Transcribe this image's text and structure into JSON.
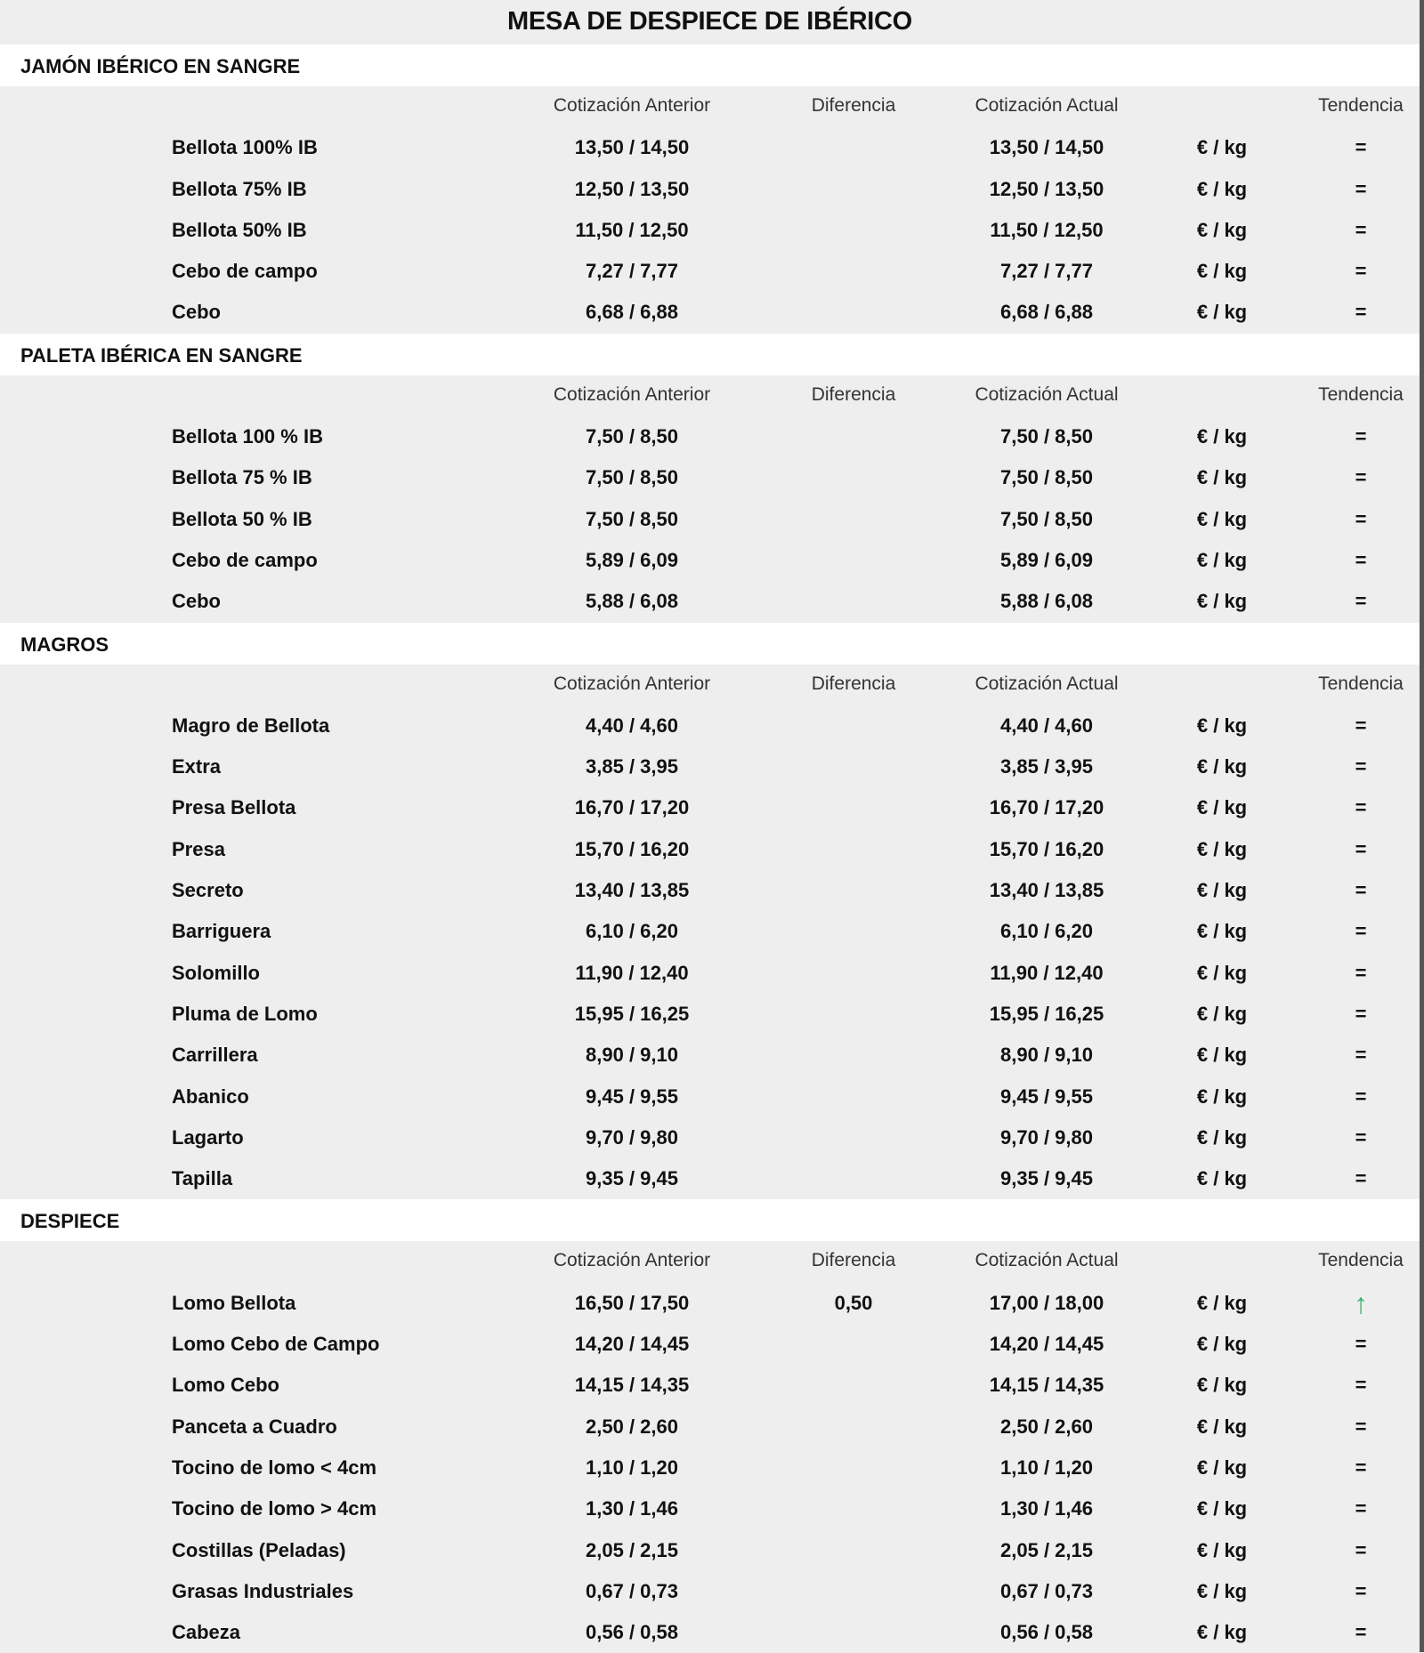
{
  "title": "MESA DE DESPIECE DE IBÉRICO",
  "columns": {
    "anterior": "Cotización Anterior",
    "diferencia": "Diferencia",
    "actual": "Cotización Actual",
    "tendencia": "Tendencia"
  },
  "colors": {
    "background": "#eeeeee",
    "section_header": "#ffffff",
    "trend_up": "#3cb371"
  },
  "sections": [
    {
      "title": "JAMÓN IBÉRICO EN SANGRE",
      "rows": [
        {
          "name": "Bellota 100% IB",
          "anterior": "13,50 / 14,50",
          "diferencia": "",
          "actual": "13,50 / 14,50",
          "unit": "€ / kg",
          "trend": "="
        },
        {
          "name": "Bellota 75% IB",
          "anterior": "12,50 / 13,50",
          "diferencia": "",
          "actual": "12,50 / 13,50",
          "unit": "€ / kg",
          "trend": "="
        },
        {
          "name": "Bellota 50% IB",
          "anterior": "11,50 / 12,50",
          "diferencia": "",
          "actual": "11,50 / 12,50",
          "unit": "€ / kg",
          "trend": "="
        },
        {
          "name": "Cebo de campo",
          "anterior": "7,27 / 7,77",
          "diferencia": "",
          "actual": "7,27 / 7,77",
          "unit": "€ / kg",
          "trend": "="
        },
        {
          "name": "Cebo",
          "anterior": "6,68 / 6,88",
          "diferencia": "",
          "actual": "6,68 / 6,88",
          "unit": "€ / kg",
          "trend": "="
        }
      ]
    },
    {
      "title": "PALETA IBÉRICA EN SANGRE",
      "rows": [
        {
          "name": "Bellota 100 % IB",
          "anterior": "7,50 / 8,50",
          "diferencia": "",
          "actual": "7,50 / 8,50",
          "unit": "€ / kg",
          "trend": "="
        },
        {
          "name": "Bellota 75 % IB",
          "anterior": "7,50 / 8,50",
          "diferencia": "",
          "actual": "7,50 / 8,50",
          "unit": "€ / kg",
          "trend": "="
        },
        {
          "name": "Bellota 50 % IB",
          "anterior": "7,50 / 8,50",
          "diferencia": "",
          "actual": "7,50 / 8,50",
          "unit": "€ / kg",
          "trend": "="
        },
        {
          "name": "Cebo de campo",
          "anterior": "5,89 / 6,09",
          "diferencia": "",
          "actual": "5,89 / 6,09",
          "unit": "€ / kg",
          "trend": "="
        },
        {
          "name": "Cebo",
          "anterior": "5,88 / 6,08",
          "diferencia": "",
          "actual": "5,88 / 6,08",
          "unit": "€ / kg",
          "trend": "="
        }
      ]
    },
    {
      "title": "MAGROS",
      "rows": [
        {
          "name": "Magro de Bellota",
          "anterior": "4,40 / 4,60",
          "diferencia": "",
          "actual": "4,40 / 4,60",
          "unit": "€ / kg",
          "trend": "="
        },
        {
          "name": "Extra",
          "anterior": "3,85 / 3,95",
          "diferencia": "",
          "actual": "3,85 / 3,95",
          "unit": "€ / kg",
          "trend": "="
        },
        {
          "name": "Presa Bellota",
          "anterior": "16,70 / 17,20",
          "diferencia": "",
          "actual": "16,70 / 17,20",
          "unit": "€ / kg",
          "trend": "="
        },
        {
          "name": "Presa",
          "anterior": "15,70 / 16,20",
          "diferencia": "",
          "actual": "15,70 / 16,20",
          "unit": "€ / kg",
          "trend": "="
        },
        {
          "name": "Secreto",
          "anterior": "13,40 / 13,85",
          "diferencia": "",
          "actual": "13,40 / 13,85",
          "unit": "€ / kg",
          "trend": "="
        },
        {
          "name": "Barriguera",
          "anterior": "6,10 / 6,20",
          "diferencia": "",
          "actual": "6,10 / 6,20",
          "unit": "€ / kg",
          "trend": "="
        },
        {
          "name": "Solomillo",
          "anterior": "11,90 / 12,40",
          "diferencia": "",
          "actual": "11,90 / 12,40",
          "unit": "€ / kg",
          "trend": "="
        },
        {
          "name": "Pluma de Lomo",
          "anterior": "15,95 / 16,25",
          "diferencia": "",
          "actual": "15,95 / 16,25",
          "unit": "€ / kg",
          "trend": "="
        },
        {
          "name": "Carrillera",
          "anterior": "8,90 / 9,10",
          "diferencia": "",
          "actual": "8,90 / 9,10",
          "unit": "€ / kg",
          "trend": "="
        },
        {
          "name": "Abanico",
          "anterior": "9,45 / 9,55",
          "diferencia": "",
          "actual": "9,45 / 9,55",
          "unit": "€ / kg",
          "trend": "="
        },
        {
          "name": "Lagarto",
          "anterior": "9,70 / 9,80",
          "diferencia": "",
          "actual": "9,70 / 9,80",
          "unit": "€ / kg",
          "trend": "="
        },
        {
          "name": "Tapilla",
          "anterior": "9,35 / 9,45",
          "diferencia": "",
          "actual": "9,35 / 9,45",
          "unit": "€ / kg",
          "trend": "="
        }
      ]
    },
    {
      "title": "DESPIECE",
      "rows": [
        {
          "name": "Lomo Bellota",
          "anterior": "16,50 / 17,50",
          "diferencia": "0,50",
          "actual": "17,00 / 18,00",
          "unit": "€ / kg",
          "trend": "↑",
          "trend_icon": "arrow-up-icon"
        },
        {
          "name": "Lomo Cebo de Campo",
          "anterior": "14,20 / 14,45",
          "diferencia": "",
          "actual": "14,20 / 14,45",
          "unit": "€ / kg",
          "trend": "="
        },
        {
          "name": "Lomo Cebo",
          "anterior": "14,15 / 14,35",
          "diferencia": "",
          "actual": "14,15 / 14,35",
          "unit": "€ / kg",
          "trend": "="
        },
        {
          "name": "Panceta a Cuadro",
          "anterior": "2,50 / 2,60",
          "diferencia": "",
          "actual": "2,50 / 2,60",
          "unit": "€ / kg",
          "trend": "="
        },
        {
          "name": "Tocino de lomo < 4cm",
          "anterior": "1,10 / 1,20",
          "diferencia": "",
          "actual": "1,10 / 1,20",
          "unit": "€ / kg",
          "trend": "="
        },
        {
          "name": "Tocino de lomo > 4cm",
          "anterior": "1,30 / 1,46",
          "diferencia": "",
          "actual": "1,30 / 1,46",
          "unit": "€ / kg",
          "trend": "="
        },
        {
          "name": "Costillas (Peladas)",
          "anterior": "2,05 / 2,15",
          "diferencia": "",
          "actual": "2,05 / 2,15",
          "unit": "€ / kg",
          "trend": "="
        },
        {
          "name": "Grasas Industriales",
          "anterior": "0,67 / 0,73",
          "diferencia": "",
          "actual": "0,67 / 0,73",
          "unit": "€ / kg",
          "trend": "="
        },
        {
          "name": "Cabeza",
          "anterior": "0,56 / 0,58",
          "diferencia": "",
          "actual": "0,56 / 0,58",
          "unit": "€ / kg",
          "trend": "="
        }
      ]
    }
  ]
}
